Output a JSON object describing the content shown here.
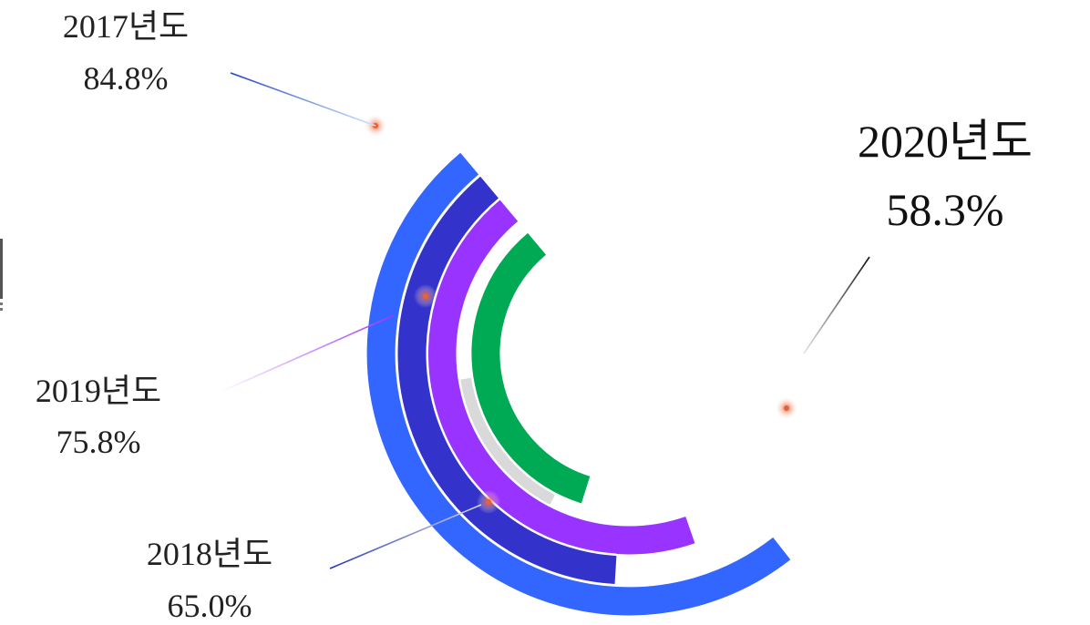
{
  "chart_data": {
    "type": "radial-bar",
    "unit": "%",
    "max": 100,
    "series": [
      {
        "name": "2017년도",
        "value": 84.8,
        "label_value": "84.8%",
        "color": "#3366FF",
        "emphasis": false
      },
      {
        "name": "2018년도",
        "value": 65.0,
        "label_value": "65.0%",
        "color": "#3333CC",
        "emphasis": false
      },
      {
        "name": "2019년도",
        "value": 75.8,
        "label_value": "75.8%",
        "color": "#9933FF",
        "emphasis": false
      },
      {
        "name": "2020년도",
        "value": 58.3,
        "label_value": "58.3%",
        "color": "#00AA55",
        "emphasis": true
      }
    ],
    "track_color": "#D9D9D9",
    "marker_color": "#E8603A"
  }
}
